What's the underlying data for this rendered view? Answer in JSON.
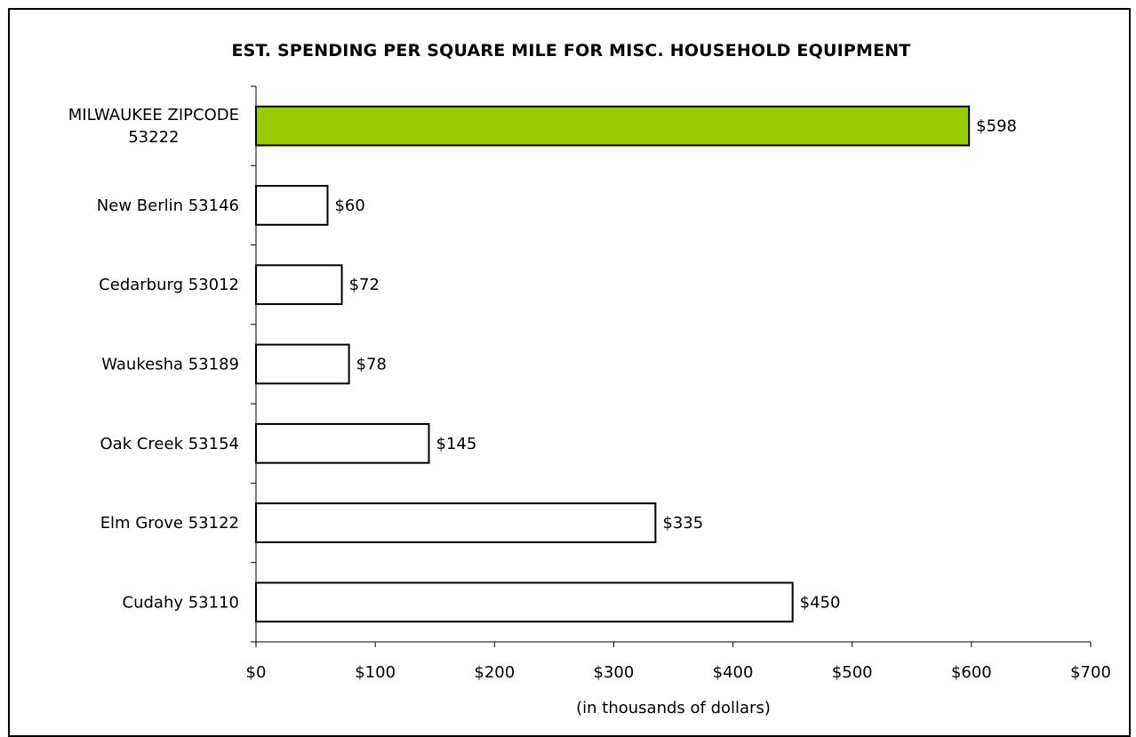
{
  "chart_data": {
    "type": "bar",
    "orientation": "horizontal",
    "title": "EST. SPENDING PER SQUARE MILE FOR MISC. HOUSEHOLD EQUIPMENT",
    "xlabel": "(in thousands of dollars)",
    "ylabel": "",
    "categories": [
      [
        "MILWAUKEE ZIPCODE",
        "53222"
      ],
      [
        "New Berlin 53146"
      ],
      [
        "Cedarburg 53012"
      ],
      [
        "Waukesha 53189"
      ],
      [
        "Oak Creek 53154"
      ],
      [
        "Elm Grove 53122"
      ],
      [
        "Cudahy 53110"
      ]
    ],
    "values": [
      598,
      60,
      72,
      78,
      145,
      335,
      450
    ],
    "data_labels": [
      "$598",
      "$60",
      "$72",
      "$78",
      "$145",
      "$335",
      "$450"
    ],
    "bar_colors": [
      "#99cc00",
      "#ffffff",
      "#ffffff",
      "#ffffff",
      "#ffffff",
      "#ffffff",
      "#ffffff"
    ],
    "xlim": [
      0,
      700
    ],
    "x_ticks": [
      0,
      100,
      200,
      300,
      400,
      500,
      600,
      700
    ],
    "x_tick_labels": [
      "$0",
      "$100",
      "$200",
      "$300",
      "$400",
      "$500",
      "$600",
      "$700"
    ],
    "grid": false,
    "legend": "none"
  }
}
